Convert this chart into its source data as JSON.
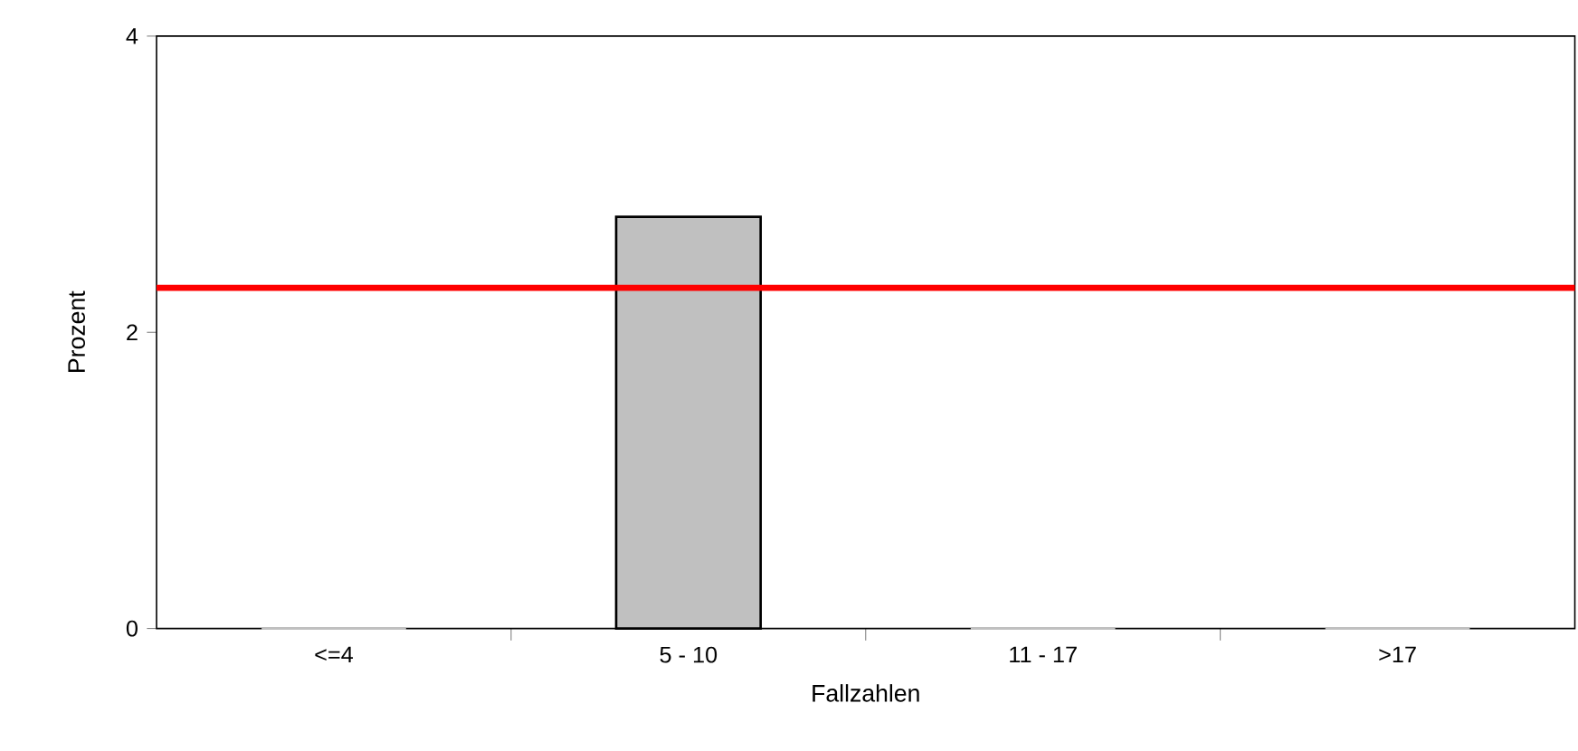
{
  "chart_data": {
    "type": "bar",
    "xlabel": "Fallzahlen",
    "ylabel": "Prozent",
    "categories": [
      "<=4",
      "5 - 10",
      "11 - 17",
      ">17"
    ],
    "values": [
      0,
      2.78,
      0,
      0
    ],
    "color": "#c0c0c0",
    "ylim": [
      0,
      4
    ],
    "yticks": [
      0,
      2,
      4
    ],
    "ref_lines": [
      {
        "axis": "y",
        "value": 2.3,
        "color": "#ff0000"
      }
    ]
  }
}
